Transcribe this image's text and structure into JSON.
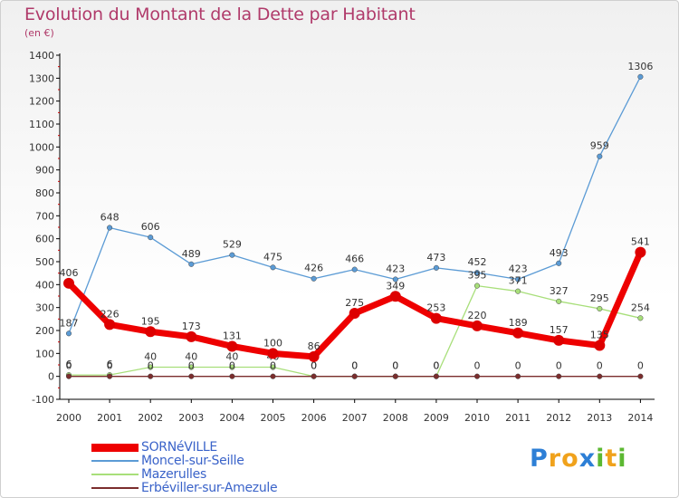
{
  "title": "Evolution du Montant de la Dette par Habitant",
  "unit_label": "(en €)",
  "logo": {
    "letters": [
      "P",
      "r",
      "o",
      "x",
      "i",
      "t",
      "i"
    ],
    "colors": [
      "#2d7fd6",
      "#f0a21c",
      "#f0a21c",
      "#2d7fd6",
      "#5cb832",
      "#f0a21c",
      "#5cb832"
    ]
  },
  "chart_data": {
    "type": "line",
    "x": [
      "2000",
      "2001",
      "2002",
      "2003",
      "2004",
      "2005",
      "2006",
      "2007",
      "2008",
      "2009",
      "2010",
      "2011",
      "2012",
      "2013",
      "2014"
    ],
    "ylim": [
      -100,
      1400
    ],
    "yticks": [
      -100,
      0,
      100,
      200,
      300,
      400,
      500,
      600,
      700,
      800,
      900,
      1000,
      1100,
      1200,
      1300,
      1400
    ],
    "grid": false,
    "legend_placement": "bottom-left",
    "series": [
      {
        "name": "Moncel-sur-Seille",
        "color": "#5b9bd5",
        "width": 1.3,
        "marker": 2.8,
        "values": [
          187,
          648,
          606,
          489,
          529,
          475,
          426,
          466,
          423,
          473,
          452,
          423,
          493,
          959,
          1306
        ],
        "labels": [
          "187",
          "648",
          "606",
          "489",
          "529",
          "475",
          "426",
          "466",
          "423",
          "473",
          "452",
          "423",
          "493",
          "959",
          "1306"
        ]
      },
      {
        "name": "Mazerulles",
        "color": "#a8df7a",
        "width": 1.3,
        "marker": 2.8,
        "values": [
          6,
          6,
          40,
          40,
          40,
          40,
          0,
          0,
          0,
          0,
          395,
          371,
          327,
          295,
          254
        ],
        "labels": [
          "6",
          "6",
          "40",
          "40",
          "40",
          "40",
          "0",
          "0",
          "0",
          "0",
          "395",
          "371",
          "327",
          "295",
          "254"
        ]
      },
      {
        "name": "Erbéviller-sur-Amezule",
        "color": "#7b2d2d",
        "width": 1.3,
        "marker": 2.8,
        "values": [
          0,
          0,
          0,
          0,
          0,
          0,
          0,
          0,
          0,
          0,
          0,
          0,
          0,
          0,
          0
        ],
        "labels": [
          "0",
          "0",
          "0",
          "0",
          "0",
          "0",
          "0",
          "0",
          "0",
          "0",
          "0",
          "0",
          "0",
          "0",
          "0"
        ]
      },
      {
        "name": "SORNéVILLE",
        "color": "#ee0000",
        "width": 7,
        "marker": 6,
        "values": [
          406,
          226,
          195,
          173,
          131,
          100,
          86,
          275,
          349,
          253,
          220,
          189,
          157,
          135,
          541
        ],
        "labels": [
          "406",
          "226",
          "195",
          "173",
          "131",
          "100",
          "86",
          "275",
          "349",
          "253",
          "220",
          "189",
          "157",
          "135",
          "541"
        ]
      }
    ],
    "legend": [
      {
        "name": "SORNéVILLE",
        "color": "#ee0000",
        "thickness": 9
      },
      {
        "name": "Moncel-sur-Seille",
        "color": "#5b9bd5",
        "thickness": 2
      },
      {
        "name": "Mazerulles",
        "color": "#a8df7a",
        "thickness": 2
      },
      {
        "name": "Erbéviller-sur-Amezule",
        "color": "#7b2d2d",
        "thickness": 2
      }
    ]
  }
}
